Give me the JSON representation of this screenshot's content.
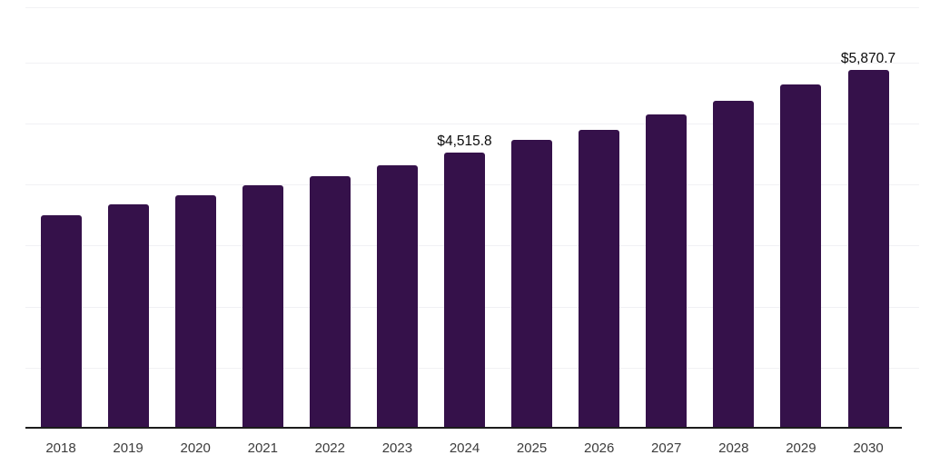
{
  "chart_data": {
    "type": "bar",
    "title": "",
    "xlabel": "",
    "ylabel": "",
    "categories": [
      "2018",
      "2019",
      "2020",
      "2021",
      "2022",
      "2023",
      "2024",
      "2025",
      "2026",
      "2027",
      "2028",
      "2029",
      "2030"
    ],
    "values": [
      3495,
      3670,
      3820,
      3985,
      4130,
      4310,
      4515.8,
      4725,
      4900,
      5140,
      5375,
      5630,
      5870.7
    ],
    "labeled_values": {
      "2024": "$4,515.8",
      "2030": "$5,870.7"
    },
    "ylim": [
      0,
      6900
    ],
    "gridline_step": 1000,
    "grid": true,
    "legend": "none",
    "y_tick_labels_visible": false
  },
  "colors": {
    "bar": "#35114A",
    "axis_line": "#1c1c1c",
    "gridline": "#f1f1f4",
    "value_label": "#0a0a0a",
    "tick_label": "#3c3c3c",
    "background": "#ffffff"
  }
}
